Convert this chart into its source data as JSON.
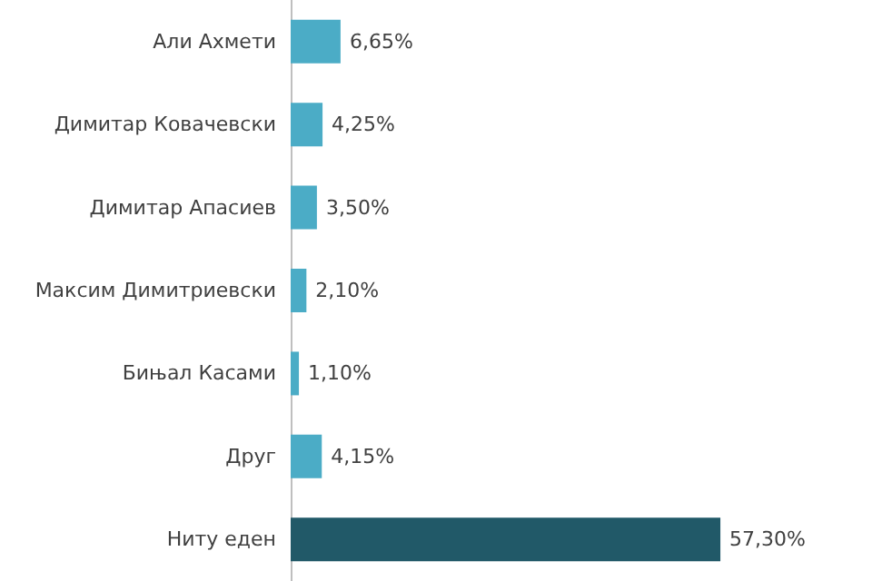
{
  "chart_data": {
    "type": "bar",
    "orientation": "horizontal",
    "categories": [
      "Али Ахмети",
      "Димитар Ковачевски",
      "Димитар Апасиев",
      "Максим Димитриевски",
      "Бињал Касами",
      "Друг",
      "Ниту еден"
    ],
    "values": [
      6.65,
      4.25,
      3.5,
      2.1,
      1.1,
      4.15,
      57.3
    ],
    "colors": [
      "#4bacc6",
      "#4bacc6",
      "#4bacc6",
      "#4bacc6",
      "#4bacc6",
      "#4bacc6",
      "#215968"
    ],
    "value_labels": [
      "6,65%",
      "4,25%",
      "3,50%",
      "2,10%",
      "1,10%",
      "4,15%",
      "57,30%"
    ]
  }
}
